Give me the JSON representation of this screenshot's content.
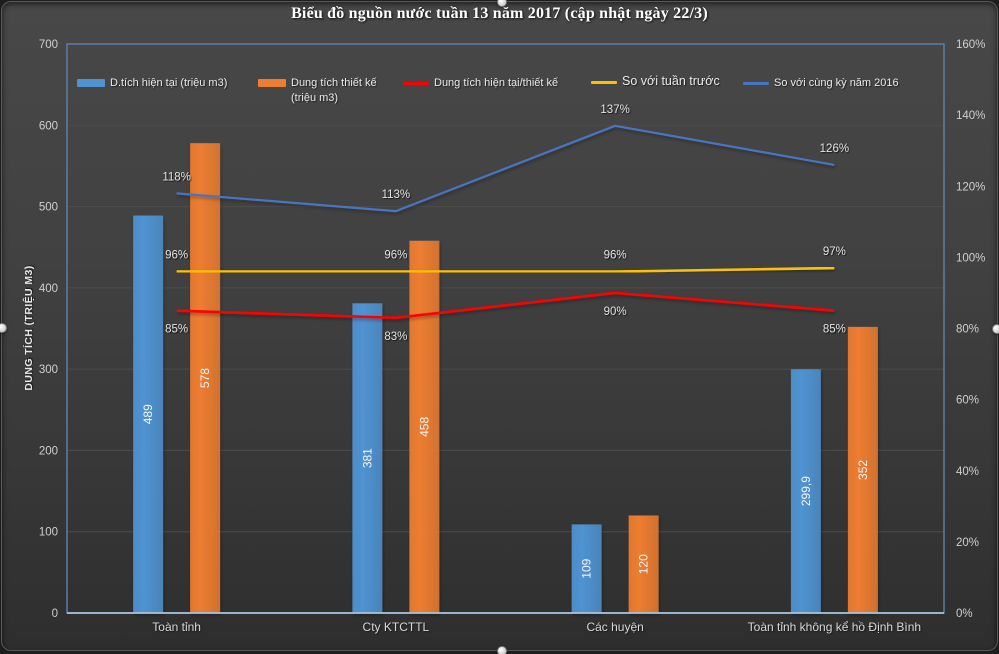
{
  "chart_data": {
    "type": "combo-bar-line",
    "title": "Biểu đồ nguồn nước tuần 13 năm 2017 (cập nhật ngày 22/3)",
    "ylabel": "DUNG TÍCH (TRIỆU M3)",
    "categories": [
      "Toàn tỉnh",
      "Cty KTCTTL",
      "Các huyện",
      "Toàn tỉnh không kể hồ Định Bình"
    ],
    "left_axis": {
      "min": 0,
      "max": 700,
      "step": 100,
      "ticks": [
        "0",
        "100",
        "200",
        "300",
        "400",
        "500",
        "600",
        "700"
      ]
    },
    "right_axis": {
      "min": 0,
      "max": 160,
      "step": 20,
      "ticks": [
        "0%",
        "20%",
        "40%",
        "60%",
        "80%",
        "100%",
        "120%",
        "140%",
        "160%"
      ]
    },
    "grid": "horizontal",
    "legend_position": "top",
    "series": [
      {
        "name": "D.tích hiện tại (triệu m3)",
        "type": "bar",
        "axis": "left",
        "color": "#4F93D2",
        "values": [
          489,
          381,
          109,
          299.9
        ],
        "labels": [
          "489",
          "381",
          "109",
          "299,9"
        ]
      },
      {
        "name": "Dung tích thiết kế (triệu m3)",
        "type": "bar",
        "axis": "left",
        "color": "#ED7D31",
        "values": [
          578,
          458,
          120,
          352
        ],
        "labels": [
          "578",
          "458",
          "120",
          "352"
        ]
      },
      {
        "name": "Dung tích hiện tại/thiết kế",
        "type": "line",
        "axis": "right",
        "color": "#FE0000",
        "values": [
          85,
          83,
          90,
          85
        ],
        "labels": [
          "85%",
          "83%",
          "90%",
          "85%"
        ],
        "label_position": "below"
      },
      {
        "name": "So với tuần trước",
        "type": "line",
        "axis": "right",
        "color": "#FFC000",
        "values": [
          96,
          96,
          96,
          97
        ],
        "labels": [
          "96%",
          "96%",
          "96%",
          "97%"
        ],
        "label_position": "above"
      },
      {
        "name": "So với cùng kỳ năm 2016",
        "type": "line",
        "axis": "right",
        "color": "#4A74C0",
        "values": [
          118,
          113,
          137,
          126
        ],
        "labels": [
          "118%",
          "113%",
          "137%",
          "126%"
        ],
        "label_position": "above"
      }
    ],
    "legend": [
      {
        "lines": [
          "D.tích hiện tại (triệu m3)"
        ],
        "swatch": "bar",
        "color": "#4F93D2"
      },
      {
        "lines": [
          "Dung tích thiết kế",
          "(triệu m3)"
        ],
        "swatch": "bar",
        "color": "#ED7D31"
      },
      {
        "lines": [
          "Dung tích hiện tại/thiết kế"
        ],
        "swatch": "line",
        "color": "#FE0000"
      },
      {
        "lines": [
          "So với tuần trước"
        ],
        "swatch": "line",
        "color": "#FFC000",
        "big": true
      },
      {
        "lines": [
          "So với cùng kỳ năm 2016"
        ],
        "swatch": "line",
        "color": "#4A74C0"
      }
    ]
  },
  "palette": {
    "chart_background_top": "#484848",
    "chart_background_bottom": "#2e2e2e",
    "gridline": "#4d4d4d",
    "plot_border": "#5b84ae",
    "axis_line": "#a9c3dc",
    "tick_text": "#cfcfcf",
    "label_text": "#e3e3e3"
  }
}
